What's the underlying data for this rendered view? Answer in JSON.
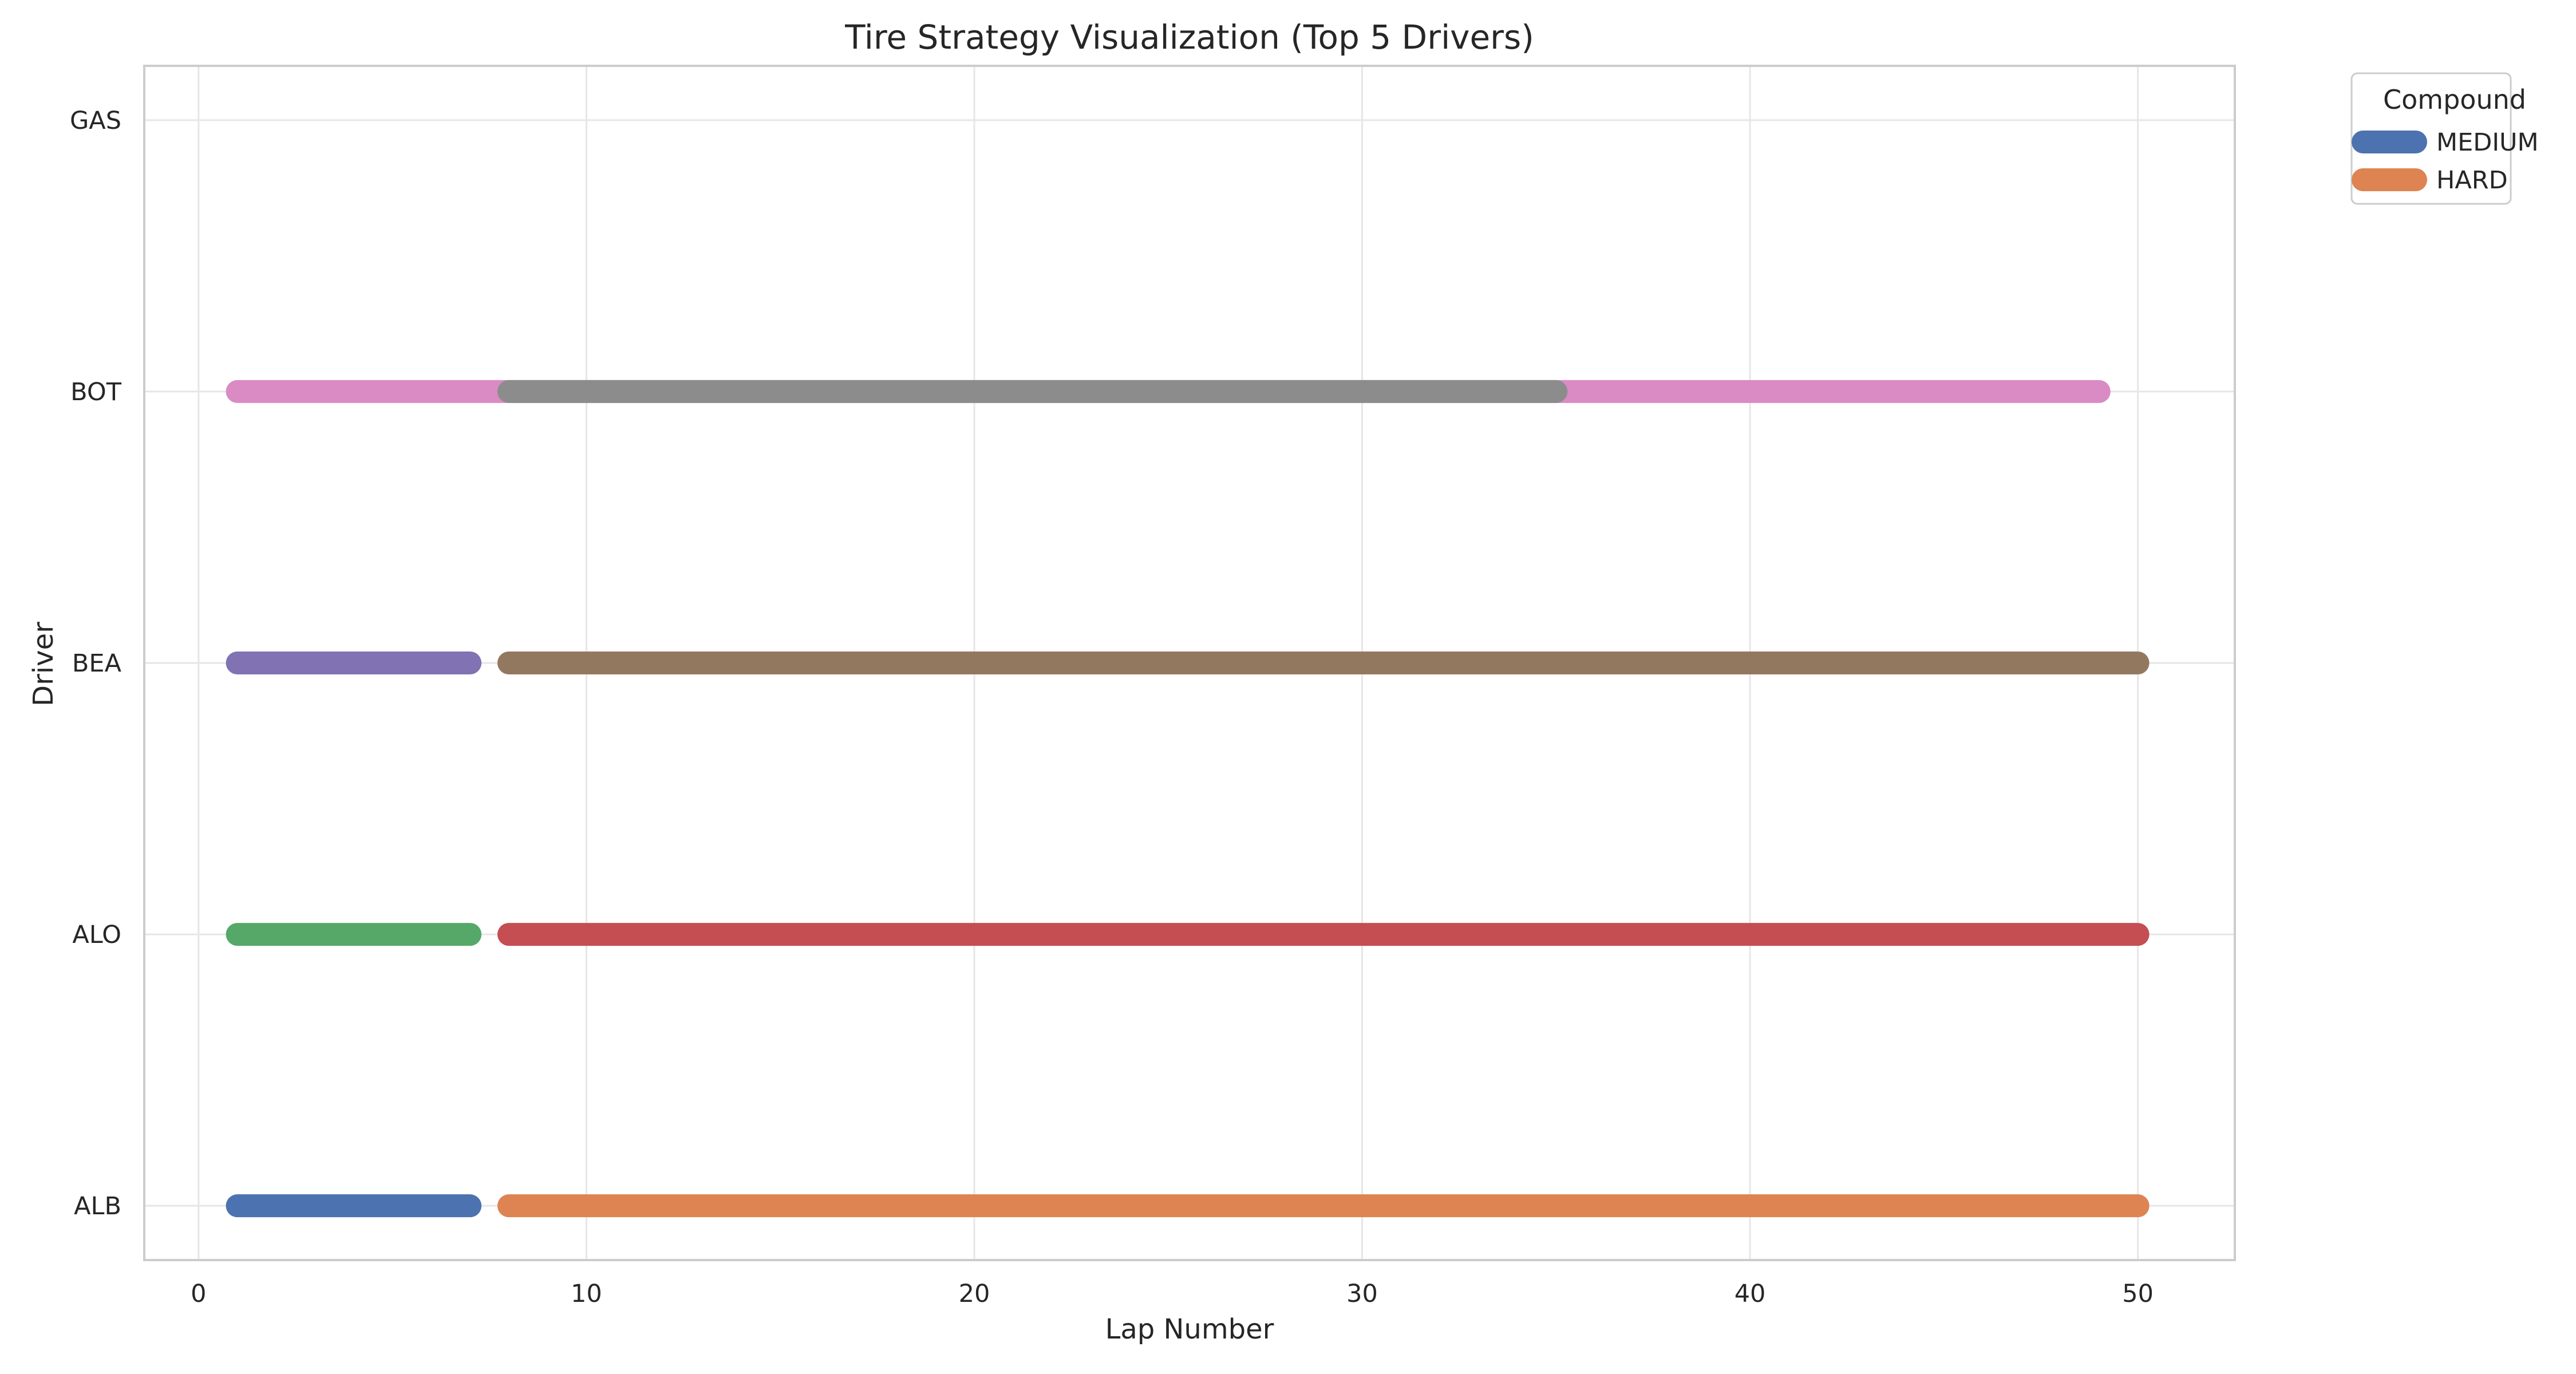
{
  "chart_data": {
    "type": "bar",
    "orientation": "horizontal-timeline",
    "title": "Tire Strategy Visualization (Top 5 Drivers)",
    "xlabel": "Lap Number",
    "ylabel": "Driver",
    "xlim": [
      -1.4,
      52.5
    ],
    "x_ticks": [
      0,
      10,
      20,
      30,
      40,
      50
    ],
    "drivers": [
      "ALB",
      "ALO",
      "BEA",
      "BOT",
      "GAS"
    ],
    "grid": true,
    "legend": {
      "title": "Compound",
      "placement": "outside-top-right",
      "entries": [
        {
          "label": "MEDIUM",
          "color": "#4c72b0"
        },
        {
          "label": "HARD",
          "color": "#dd8452"
        }
      ]
    },
    "stints": [
      {
        "driver": "ALB",
        "start": 1,
        "end": 7,
        "color": "#4c72b0"
      },
      {
        "driver": "ALB",
        "start": 8,
        "end": 50,
        "color": "#dd8452"
      },
      {
        "driver": "ALO",
        "start": 1,
        "end": 7,
        "color": "#55a868"
      },
      {
        "driver": "ALO",
        "start": 8,
        "end": 50,
        "color": "#c44e52"
      },
      {
        "driver": "BEA",
        "start": 1,
        "end": 7,
        "color": "#8172b3"
      },
      {
        "driver": "BEA",
        "start": 8,
        "end": 50,
        "color": "#937860"
      },
      {
        "driver": "BOT",
        "start": 1,
        "end": 49,
        "color": "#da8bc3"
      },
      {
        "driver": "BOT",
        "start": 8,
        "end": 35,
        "color": "#8c8c8c"
      }
    ]
  }
}
